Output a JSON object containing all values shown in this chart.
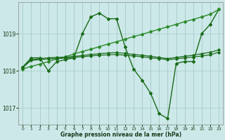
{
  "title": "Graphe pression niveau de la mer (hPa)",
  "bg_color": "#cce8e8",
  "grid_color": "#aacccc",
  "xlim": [
    -0.5,
    23.5
  ],
  "ylim": [
    1016.55,
    1019.85
  ],
  "yticks": [
    1017,
    1018,
    1019
  ],
  "xticks": [
    0,
    1,
    2,
    3,
    4,
    5,
    6,
    7,
    8,
    9,
    10,
    11,
    12,
    13,
    14,
    15,
    16,
    17,
    18,
    19,
    20,
    21,
    22,
    23
  ],
  "series": [
    {
      "x": [
        0,
        1,
        2,
        3,
        4,
        5,
        6,
        7,
        8,
        9,
        10,
        11,
        12,
        13,
        14,
        15,
        16,
        17,
        18,
        19,
        20,
        21,
        22,
        23
      ],
      "y": [
        1018.1,
        1018.35,
        1018.35,
        1018.0,
        1018.25,
        1018.3,
        1018.35,
        1019.0,
        1019.45,
        1019.55,
        1019.4,
        1019.4,
        1018.65,
        1018.05,
        1017.75,
        1017.4,
        1016.85,
        1016.72,
        1018.2,
        1018.25,
        1018.25,
        1019.0,
        1019.25,
        1019.65
      ],
      "color": "#1a6b1a",
      "lw": 1.0,
      "marker": "D",
      "ms": 2.0
    },
    {
      "x": [
        0,
        1,
        2,
        3,
        4,
        5,
        6,
        7,
        8,
        9,
        10,
        11,
        12,
        13,
        14,
        15,
        16,
        17,
        18,
        19,
        20,
        21,
        22,
        23
      ],
      "y": [
        1018.05,
        1018.12,
        1018.18,
        1018.25,
        1018.32,
        1018.38,
        1018.45,
        1018.52,
        1018.58,
        1018.65,
        1018.72,
        1018.78,
        1018.85,
        1018.92,
        1018.98,
        1019.05,
        1019.12,
        1019.18,
        1019.25,
        1019.32,
        1019.38,
        1019.45,
        1019.52,
        1019.65
      ],
      "color": "#2d8b2d",
      "lw": 1.0,
      "marker": "D",
      "ms": 2.0
    },
    {
      "x": [
        0,
        1,
        2,
        3,
        4,
        5,
        6,
        7,
        8,
        9,
        10,
        11,
        12,
        13,
        14,
        15,
        16,
        17,
        18,
        19,
        20,
        21,
        22,
        23
      ],
      "y": [
        1018.1,
        1018.28,
        1018.3,
        1018.32,
        1018.33,
        1018.34,
        1018.36,
        1018.38,
        1018.4,
        1018.42,
        1018.43,
        1018.44,
        1018.42,
        1018.4,
        1018.38,
        1018.35,
        1018.33,
        1018.3,
        1018.32,
        1018.35,
        1018.37,
        1018.4,
        1018.43,
        1018.5
      ],
      "color": "#1a6b1a",
      "lw": 0.9,
      "marker": "D",
      "ms": 1.8
    },
    {
      "x": [
        0,
        1,
        2,
        3,
        4,
        5,
        6,
        7,
        8,
        9,
        10,
        11,
        12,
        13,
        14,
        15,
        16,
        17,
        18,
        19,
        20,
        21,
        22,
        23
      ],
      "y": [
        1018.08,
        1018.3,
        1018.33,
        1018.35,
        1018.36,
        1018.37,
        1018.39,
        1018.41,
        1018.44,
        1018.46,
        1018.48,
        1018.49,
        1018.47,
        1018.44,
        1018.42,
        1018.39,
        1018.36,
        1018.33,
        1018.36,
        1018.39,
        1018.42,
        1018.46,
        1018.5,
        1018.56
      ],
      "color": "#1a6b1a",
      "lw": 0.9,
      "marker": "D",
      "ms": 1.8
    }
  ]
}
